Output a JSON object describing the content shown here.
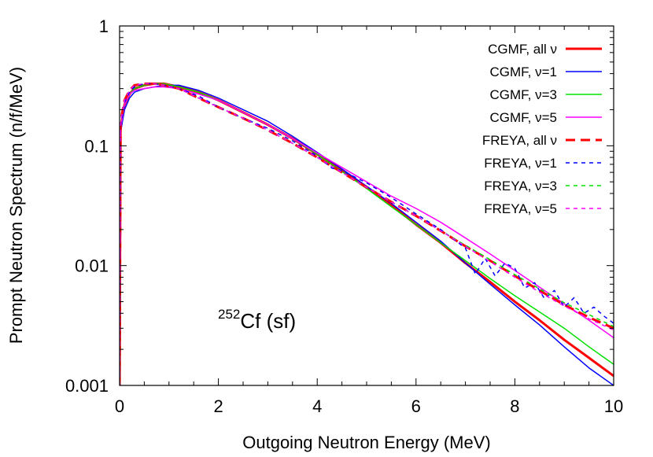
{
  "chart_data": {
    "type": "line",
    "xlabel": "Outgoing Neutron Energy (MeV)",
    "ylabel": "Prompt Neutron Spectrum (n/f/MeV)",
    "xlim": [
      0,
      10
    ],
    "ylim": [
      0.001,
      1
    ],
    "yscale": "log",
    "xticks": [
      0,
      2,
      4,
      6,
      8,
      10
    ],
    "xtick_labels": [
      "0",
      "2",
      "4",
      "6",
      "8",
      "10"
    ],
    "yticks": [
      0.001,
      0.01,
      0.1,
      1
    ],
    "ytick_labels": [
      "0.001",
      "0.01",
      "0.1",
      "1"
    ],
    "grid": false,
    "legend_position": "top-right",
    "annotation": {
      "mass": "252",
      "text": "Cf (sf)"
    },
    "series": [
      {
        "name": "CGMF, all ν",
        "color": "#ff0000",
        "dash": "solid",
        "width": 3,
        "x": [
          0,
          0.02,
          0.1,
          0.2,
          0.3,
          0.5,
          0.7,
          0.9,
          1.2,
          1.6,
          2.0,
          2.5,
          3.0,
          3.5,
          4.0,
          4.5,
          5.0,
          5.5,
          6.0,
          6.5,
          7.0,
          7.5,
          8.0,
          8.5,
          9.0,
          9.5,
          10.0
        ],
        "y": [
          0.001,
          0.14,
          0.22,
          0.27,
          0.3,
          0.32,
          0.33,
          0.33,
          0.31,
          0.28,
          0.24,
          0.19,
          0.15,
          0.115,
          0.085,
          0.062,
          0.045,
          0.032,
          0.022,
          0.0155,
          0.0105,
          0.0073,
          0.005,
          0.0035,
          0.0024,
          0.0017,
          0.0012
        ]
      },
      {
        "name": "CGMF, ν=1",
        "color": "#0000ff",
        "dash": "solid",
        "width": 1.5,
        "x": [
          0,
          0.02,
          0.1,
          0.2,
          0.3,
          0.5,
          0.7,
          0.9,
          1.2,
          1.6,
          2.0,
          2.5,
          3.0,
          3.5,
          4.0,
          4.5,
          5.0,
          5.5,
          6.0,
          6.5,
          7.0,
          7.5,
          8.0,
          8.5,
          9.0,
          9.5,
          10.0
        ],
        "y": [
          0.001,
          0.13,
          0.2,
          0.25,
          0.28,
          0.3,
          0.31,
          0.32,
          0.32,
          0.29,
          0.25,
          0.2,
          0.16,
          0.12,
          0.088,
          0.064,
          0.046,
          0.033,
          0.023,
          0.016,
          0.0105,
          0.007,
          0.0047,
          0.0032,
          0.0021,
          0.0014,
          0.001
        ]
      },
      {
        "name": "CGMF, ν=3",
        "color": "#00e000",
        "dash": "solid",
        "width": 1.5,
        "x": [
          0,
          0.02,
          0.1,
          0.2,
          0.3,
          0.5,
          0.7,
          0.9,
          1.2,
          1.6,
          2.0,
          2.5,
          3.0,
          3.5,
          4.0,
          4.5,
          5.0,
          5.5,
          6.0,
          6.5,
          7.0,
          7.5,
          8.0,
          8.5,
          9.0,
          9.5,
          10.0
        ],
        "y": [
          0.001,
          0.14,
          0.22,
          0.27,
          0.3,
          0.32,
          0.33,
          0.33,
          0.31,
          0.28,
          0.24,
          0.19,
          0.15,
          0.115,
          0.085,
          0.061,
          0.044,
          0.031,
          0.022,
          0.0155,
          0.011,
          0.0078,
          0.0056,
          0.0041,
          0.003,
          0.0021,
          0.0015
        ]
      },
      {
        "name": "CGMF, ν=5",
        "color": "#ff00ff",
        "dash": "solid",
        "width": 1.5,
        "x": [
          0,
          0.02,
          0.1,
          0.2,
          0.3,
          0.5,
          0.7,
          0.9,
          1.2,
          1.6,
          2.0,
          2.5,
          3.0,
          3.5,
          4.0,
          4.5,
          5.0,
          5.5,
          6.0,
          6.5,
          7.0,
          7.5,
          8.0,
          8.5,
          9.0,
          9.5,
          10.0
        ],
        "y": [
          0.001,
          0.14,
          0.22,
          0.27,
          0.29,
          0.3,
          0.31,
          0.31,
          0.3,
          0.27,
          0.24,
          0.19,
          0.15,
          0.115,
          0.087,
          0.066,
          0.05,
          0.038,
          0.03,
          0.023,
          0.017,
          0.0125,
          0.0091,
          0.0066,
          0.0048,
          0.0035,
          0.0025
        ]
      },
      {
        "name": "FREYA, all ν",
        "color": "#ff0000",
        "dash": "long",
        "width": 3,
        "x": [
          0,
          0.02,
          0.1,
          0.2,
          0.3,
          0.5,
          0.7,
          0.9,
          1.2,
          1.6,
          2.0,
          2.5,
          3.0,
          3.5,
          4.0,
          4.5,
          5.0,
          5.5,
          6.0,
          6.5,
          7.0,
          7.5,
          8.0,
          8.5,
          9.0,
          9.5,
          10.0
        ],
        "y": [
          0.001,
          0.16,
          0.24,
          0.29,
          0.32,
          0.33,
          0.33,
          0.32,
          0.3,
          0.25,
          0.21,
          0.17,
          0.135,
          0.105,
          0.08,
          0.06,
          0.045,
          0.034,
          0.026,
          0.0195,
          0.0145,
          0.011,
          0.0082,
          0.0062,
          0.0047,
          0.0037,
          0.003
        ]
      },
      {
        "name": "FREYA, ν=1",
        "color": "#0000ff",
        "dash": "short",
        "width": 1.5,
        "x": [
          0,
          0.02,
          0.1,
          0.2,
          0.3,
          0.5,
          0.7,
          0.9,
          1.2,
          1.6,
          2.0,
          2.5,
          3.0,
          3.5,
          4.0,
          4.3,
          4.5,
          5.0,
          5.5,
          6.0,
          6.5,
          7.0,
          7.2,
          7.4,
          7.6,
          7.8,
          8.0,
          8.2,
          8.4,
          8.6,
          8.8,
          9.0,
          9.2,
          9.4,
          9.6,
          9.8,
          10.0
        ],
        "y": [
          0.001,
          0.15,
          0.23,
          0.28,
          0.31,
          0.33,
          0.33,
          0.32,
          0.3,
          0.26,
          0.21,
          0.17,
          0.14,
          0.11,
          0.082,
          0.065,
          0.062,
          0.049,
          0.037,
          0.027,
          0.02,
          0.014,
          0.0085,
          0.0115,
          0.0082,
          0.0105,
          0.0095,
          0.0065,
          0.0072,
          0.0053,
          0.0062,
          0.0045,
          0.0054,
          0.004,
          0.0045,
          0.0038,
          0.0033
        ]
      },
      {
        "name": "FREYA, ν=3",
        "color": "#00e000",
        "dash": "short",
        "width": 1.5,
        "x": [
          0,
          0.02,
          0.1,
          0.2,
          0.3,
          0.5,
          0.7,
          0.9,
          1.2,
          1.6,
          2.0,
          2.5,
          3.0,
          3.5,
          4.0,
          4.5,
          5.0,
          5.5,
          6.0,
          6.5,
          7.0,
          7.5,
          8.0,
          8.5,
          9.0,
          9.5,
          10.0
        ],
        "y": [
          0.001,
          0.16,
          0.24,
          0.29,
          0.32,
          0.33,
          0.33,
          0.32,
          0.3,
          0.25,
          0.21,
          0.17,
          0.135,
          0.105,
          0.08,
          0.06,
          0.045,
          0.034,
          0.026,
          0.0195,
          0.0148,
          0.0112,
          0.0084,
          0.0064,
          0.0049,
          0.0039,
          0.0031
        ]
      },
      {
        "name": "FREYA, ν=5",
        "color": "#ff00ff",
        "dash": "short",
        "width": 1.5,
        "x": [
          0,
          0.02,
          0.1,
          0.2,
          0.3,
          0.5,
          0.7,
          0.9,
          1.2,
          1.6,
          2.0,
          2.5,
          3.0,
          3.5,
          4.0,
          4.5,
          5.0,
          5.5,
          6.0,
          6.5,
          7.0,
          7.5,
          8.0,
          8.5,
          9.0,
          9.5,
          10.0
        ],
        "y": [
          0.001,
          0.16,
          0.24,
          0.29,
          0.32,
          0.33,
          0.33,
          0.32,
          0.3,
          0.25,
          0.21,
          0.17,
          0.135,
          0.105,
          0.08,
          0.06,
          0.045,
          0.034,
          0.026,
          0.0195,
          0.0145,
          0.0108,
          0.008,
          0.006,
          0.0046,
          0.0036,
          0.0029
        ]
      }
    ]
  }
}
